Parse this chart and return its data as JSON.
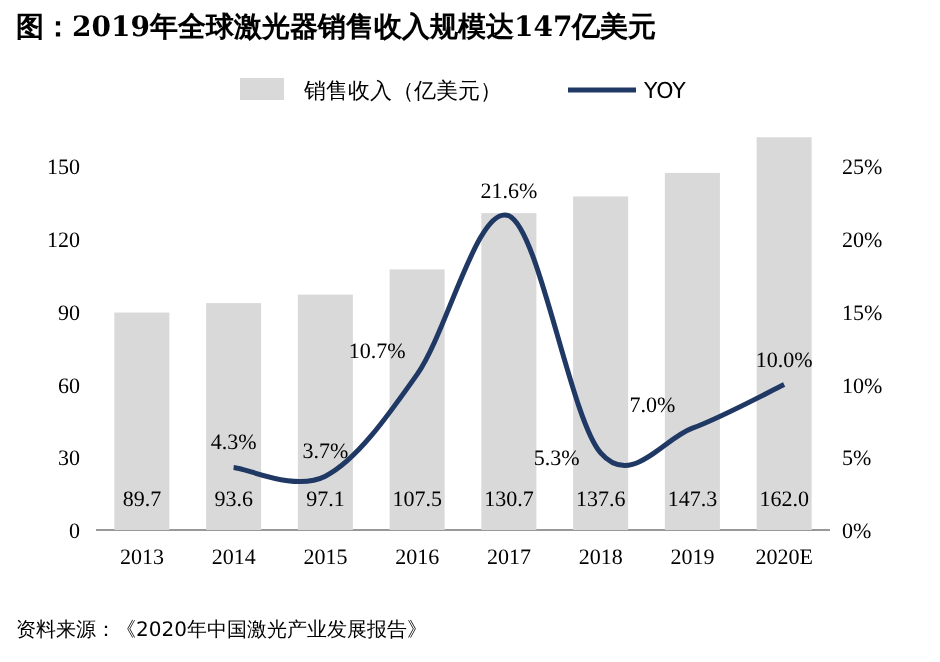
{
  "chart_data": {
    "type": "bar",
    "title": "图：2019年全球激光器销售收入规模达147亿美元",
    "categories": [
      "2013",
      "2014",
      "2015",
      "2016",
      "2017",
      "2018",
      "2019",
      "2020E"
    ],
    "series": [
      {
        "name": "销售收入（亿美元）",
        "color": "#d9d9d9",
        "values": [
          89.7,
          93.6,
          97.1,
          107.5,
          130.7,
          137.6,
          147.3,
          162.0
        ],
        "value_labels": [
          "89.7",
          "93.6",
          "97.1",
          "107.5",
          "130.7",
          "137.6",
          "147.3",
          "162.0"
        ]
      },
      {
        "name": "YOY",
        "type": "line",
        "axis": "y2",
        "color": "#1f3864",
        "values": [
          null,
          4.3,
          3.7,
          10.7,
          21.6,
          5.3,
          7.0,
          10.0
        ],
        "value_labels": [
          null,
          "4.3%",
          "3.7%",
          "10.7%",
          "21.6%",
          "5.3%",
          "7.0%",
          "10.0%"
        ]
      }
    ],
    "ylim": [
      0,
      165
    ],
    "yticks": [
      0,
      30,
      60,
      90,
      120,
      150
    ],
    "y2lim": [
      0,
      27.5
    ],
    "y2ticks": [
      {
        "value": 0,
        "label": "0%"
      },
      {
        "value": 5,
        "label": "5%"
      },
      {
        "value": 10,
        "label": "10%"
      },
      {
        "value": 15,
        "label": "15%"
      },
      {
        "value": 20,
        "label": "20%"
      },
      {
        "value": 25,
        "label": "25%"
      }
    ],
    "legend": "top",
    "annotations": [
      "资料来源：《2020年中国激光产业发展报告》"
    ]
  }
}
